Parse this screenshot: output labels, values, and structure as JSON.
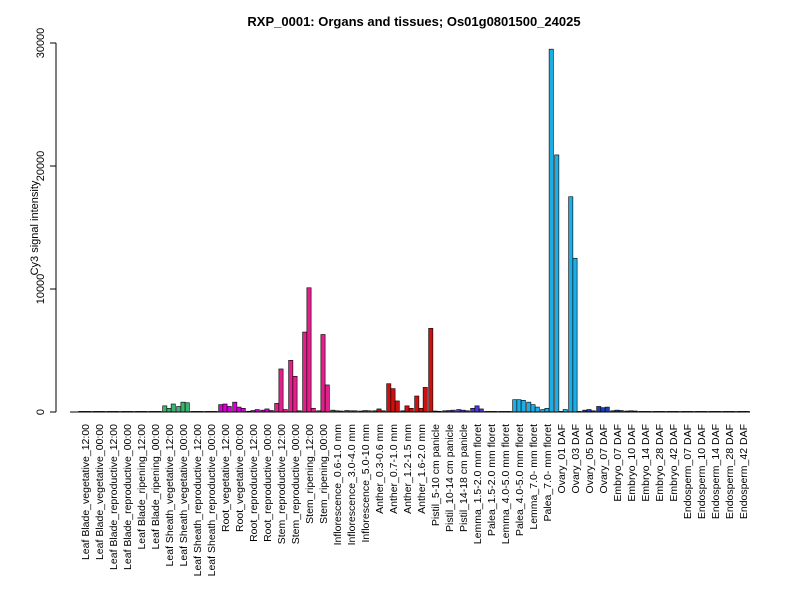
{
  "chart_data": {
    "type": "bar",
    "title": "RXP_0001: Organs and tissues; Os01g0801500_24025",
    "xlabel": "",
    "ylabel": "Cy3 signal intensity",
    "ylim": [
      0,
      30000
    ],
    "yticks": [
      0,
      10000,
      20000,
      30000
    ],
    "grid": false,
    "labels": [
      "Leaf Blade_vegetative_12:00",
      "Leaf Blade_vegetative_00:00",
      "Leaf Blade_reproductive_12:00",
      "Leaf Blade_reproductive_00:00",
      "Leaf Blade_ripening_12:00",
      "Leaf Blade_ripening_00:00",
      "Leaf Sheath_vegetative_12:00",
      "Leaf Sheath_vegetative_00:00",
      "Leaf Sheath_reproductive_12:00",
      "Leaf Sheath_reproductive_00:00",
      "Root_vegetative_12:00",
      "Root_vegetative_00:00",
      "Root_reproductive_12:00",
      "Root_reproductive_00:00",
      "Stem_reproductive_12:00",
      "Stem_reproductive_00:00",
      "Stem_ripening_12:00",
      "Stem_ripening_00:00",
      "Inflorescence_0.6-1.0 mm",
      "Inflorescence_3.0-4.0 mm",
      "Inflorescence_5.0-10 mm",
      "Anther_0.3-0.6 mm",
      "Anther_0.7-1.0 mm",
      "Anther_1.2-1.5 mm",
      "Anther_1.6-2.0 mm",
      "Pistil_5-10 cm panicle",
      "Pistil_10-14 cm panicle",
      "Pistil_14-18 cm panicle",
      "Lemma_1.5-2.0 mm floret",
      "Palea_1.5-2.0 mm floret",
      "Lemma_4.0-5.0 mm floret",
      "Palea_4.0-5.0 mm floret",
      "Lemma_7.0- mm floret",
      "Palea_7.0- mm floret",
      "Ovary_01 DAF",
      "Ovary_03 DAF",
      "Ovary_05 DAF",
      "Ovary_07 DAF",
      "Embryo_07 DAF",
      "Embryo_10 DAF",
      "Embryo_14 DAF",
      "Embryo_28 DAF",
      "Embryo_42 DAF",
      "Endosperm_07 DAF",
      "Endosperm_10 DAF",
      "Endosperm_14 DAF",
      "Endosperm_28 DAF",
      "Endosperm_42 DAF"
    ],
    "groups": [
      {
        "values": [
          20,
          20,
          20
        ],
        "color": "#6b8e23"
      },
      {
        "values": [
          20,
          20,
          20
        ],
        "color": "#6b8e23"
      },
      {
        "values": [
          20,
          20,
          20
        ],
        "color": "#6b8e23"
      },
      {
        "values": [
          20,
          20,
          20
        ],
        "color": "#6b8e23"
      },
      {
        "values": [
          20,
          20,
          20
        ],
        "color": "#6b8e23"
      },
      {
        "values": [
          20,
          20,
          20
        ],
        "color": "#6b8e23"
      },
      {
        "values": [
          500,
          300,
          650
        ],
        "color": "#3cb371"
      },
      {
        "values": [
          450,
          800,
          750
        ],
        "color": "#3cb371"
      },
      {
        "values": [
          20,
          20,
          20
        ],
        "color": "#3cb371"
      },
      {
        "values": [
          20,
          20,
          20
        ],
        "color": "#3cb371"
      },
      {
        "values": [
          600,
          650,
          450
        ],
        "color": "#d400d4"
      },
      {
        "values": [
          800,
          400,
          300
        ],
        "color": "#d400d4"
      },
      {
        "values": [
          60,
          120,
          200
        ],
        "color": "#d400d4"
      },
      {
        "values": [
          150,
          250,
          120
        ],
        "color": "#d400d4"
      },
      {
        "values": [
          700,
          3500,
          200
        ],
        "color": "#e0218a"
      },
      {
        "values": [
          4200,
          2900,
          100
        ],
        "color": "#e0218a"
      },
      {
        "values": [
          6500,
          10100,
          300
        ],
        "color": "#e0218a"
      },
      {
        "values": [
          100,
          6300,
          2200
        ],
        "color": "#e0218a"
      },
      {
        "values": [
          150,
          100,
          80
        ],
        "color": "#228b22"
      },
      {
        "values": [
          120,
          100,
          100
        ],
        "color": "#228b22"
      },
      {
        "values": [
          80,
          120,
          100
        ],
        "color": "#228b22"
      },
      {
        "values": [
          100,
          250,
          100
        ],
        "color": "#cc1111"
      },
      {
        "values": [
          2300,
          1900,
          900
        ],
        "color": "#cc1111"
      },
      {
        "values": [
          100,
          500,
          300
        ],
        "color": "#cc1111"
      },
      {
        "values": [
          1300,
          300,
          2000
        ],
        "color": "#cc1111"
      },
      {
        "values": [
          6800,
          80,
          60
        ],
        "color": "#cc1111"
      },
      {
        "values": [
          100,
          120,
          150
        ],
        "color": "#4b3bd6"
      },
      {
        "values": [
          200,
          150,
          100
        ],
        "color": "#4b3bd6"
      },
      {
        "values": [
          300,
          500,
          250
        ],
        "color": "#4b3bd6"
      },
      {
        "values": [
          30,
          30,
          30
        ],
        "color": "#1e90ff"
      },
      {
        "values": [
          30,
          30,
          30
        ],
        "color": "#1e90ff"
      },
      {
        "values": [
          1000,
          1000,
          950
        ],
        "color": "#1eaee6"
      },
      {
        "values": [
          800,
          600,
          400
        ],
        "color": "#1eaee6"
      },
      {
        "values": [
          200,
          300,
          29500
        ],
        "color": "#1eaee6"
      },
      {
        "values": [
          20900,
          20,
          200
        ],
        "color": "#1eaee6"
      },
      {
        "values": [
          17500,
          12500,
          20
        ],
        "color": "#1eaee6"
      },
      {
        "values": [
          150,
          200,
          100
        ],
        "color": "#1f3fb3"
      },
      {
        "values": [
          450,
          350,
          400
        ],
        "color": "#1f3fb3"
      },
      {
        "values": [
          100,
          150,
          120
        ],
        "color": "#1f3fb3"
      },
      {
        "values": [
          80,
          100,
          80
        ],
        "color": "#1f3fb3"
      },
      {
        "values": [
          30,
          30,
          30
        ],
        "color": "#c0b000"
      },
      {
        "values": [
          30,
          30,
          30
        ],
        "color": "#c0b000"
      },
      {
        "values": [
          30,
          30,
          30
        ],
        "color": "#c0b000"
      },
      {
        "values": [
          30,
          30,
          30
        ],
        "color": "#c0b000"
      },
      {
        "values": [
          30,
          30,
          30
        ],
        "color": "#c0b000"
      },
      {
        "values": [
          30,
          30,
          30
        ],
        "color": "#b8860b"
      },
      {
        "values": [
          30,
          30,
          30
        ],
        "color": "#b8860b"
      },
      {
        "values": [
          30,
          30,
          30
        ],
        "color": "#b8860b"
      }
    ]
  }
}
